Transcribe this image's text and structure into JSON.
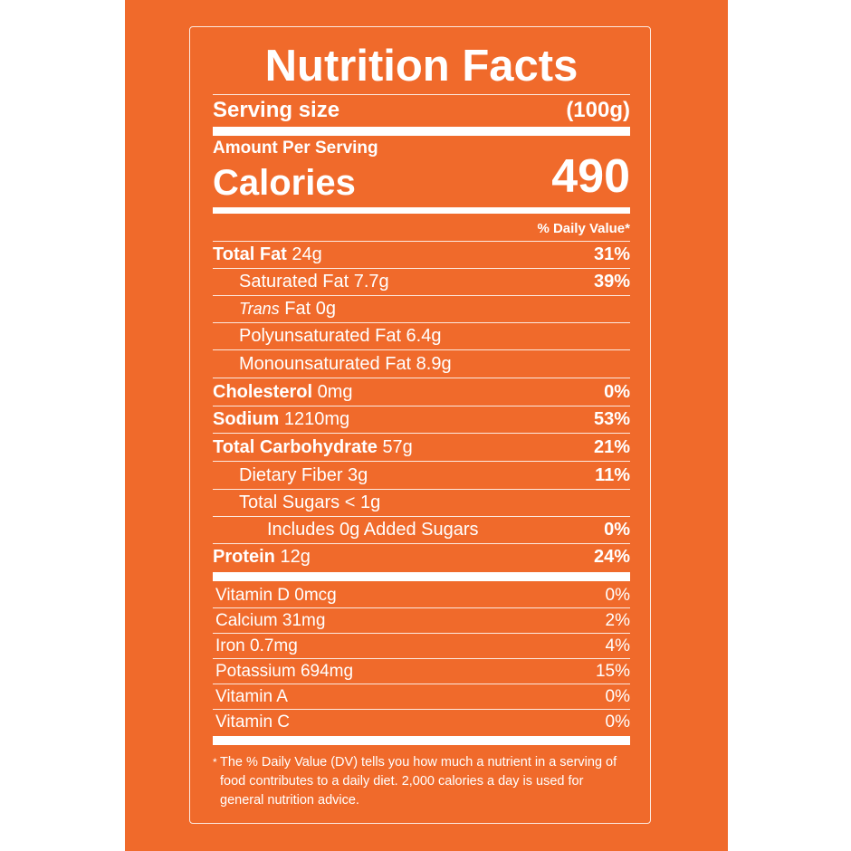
{
  "label": {
    "title": "Nutrition Facts",
    "serving_size_label": "Serving size",
    "serving_size_value": "(100g)",
    "amount_per_serving": "Amount Per Serving",
    "calories_label": "Calories",
    "calories_value": "490",
    "daily_value_header": "% Daily Value*"
  },
  "nutrients": [
    {
      "name": "Total Fat",
      "amount": "24g",
      "dv": "31%"
    },
    {
      "name": "Saturated Fat 7.7g",
      "amount": "",
      "dv": "39%"
    },
    {
      "name_italic": "Trans",
      "name": "Fat 0g",
      "amount": "",
      "dv": ""
    },
    {
      "name": "Polyunsaturated Fat 6.4g",
      "amount": "",
      "dv": ""
    },
    {
      "name": "Monounsaturated Fat 8.9g",
      "amount": "",
      "dv": ""
    },
    {
      "name": "Cholesterol",
      "amount": "0mg",
      "dv": "0%"
    },
    {
      "name": "Sodium",
      "amount": "1210mg",
      "dv": "53%"
    },
    {
      "name": "Total Carbohydrate",
      "amount": "57g",
      "dv": "21%"
    },
    {
      "name": "Dietary Fiber 3g",
      "amount": "",
      "dv": "11%"
    },
    {
      "name": "Total Sugars < 1g",
      "amount": "",
      "dv": ""
    },
    {
      "name": "Includes 0g Added Sugars",
      "amount": "",
      "dv": "0%"
    },
    {
      "name": "Protein",
      "amount": "12g",
      "dv": "24%"
    }
  ],
  "vitamins": [
    {
      "name": "Vitamin D 0mcg",
      "dv": "0%"
    },
    {
      "name": "Calcium 31mg",
      "dv": "2%"
    },
    {
      "name": "Iron 0.7mg",
      "dv": "4%"
    },
    {
      "name": "Potassium 694mg",
      "dv": "15%"
    },
    {
      "name": "Vitamin A",
      "dv": "0%"
    },
    {
      "name": "Vitamin C",
      "dv": "0%"
    }
  ],
  "footnote": {
    "star": "*",
    "text": "The % Daily Value (DV) tells you how much a nutrient in a serving of food contributes to a daily diet. 2,000 calories a day is used for general nutrition advice."
  },
  "colors": {
    "background": "#f06a2b",
    "text": "#ffffff"
  }
}
